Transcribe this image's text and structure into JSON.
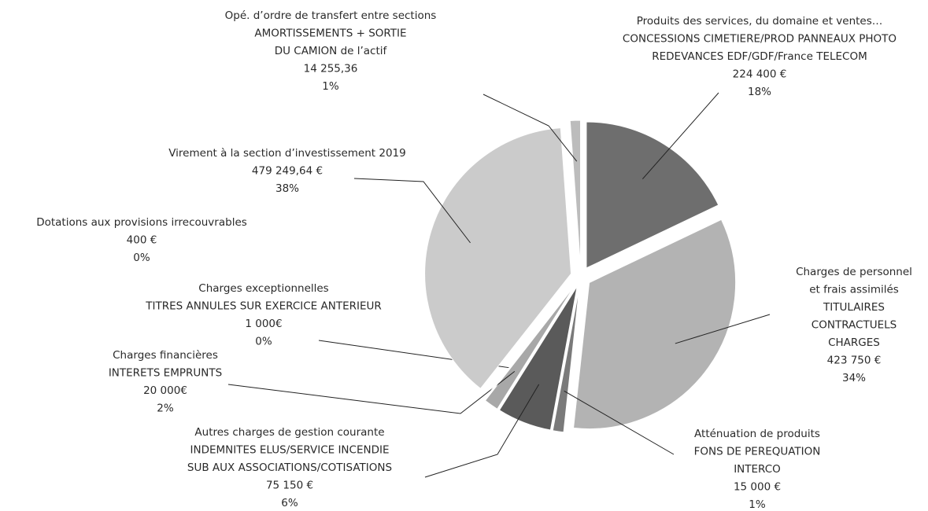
{
  "chart_data": {
    "type": "pie",
    "labels": [
      [
        "Produits des services, du domaine et ventes…",
        "CONCESSIONS CIMETIERE/PROD PANNEAUX PHOTO",
        "REDEVANCES EDF/GDF/France TELECOM"
      ],
      [
        "Charges de personnel",
        "et frais assimilés",
        "TITULAIRES",
        "CONTRACTUELS",
        "CHARGES"
      ],
      [
        "Atténuation de produits",
        "FONS DE PEREQUATION",
        "INTERCO"
      ],
      [
        "Autres charges de gestion courante",
        "INDEMNITES ELUS/SERVICE INCENDIE",
        "SUB AUX ASSOCIATIONS/COTISATIONS"
      ],
      [
        "Charges financières",
        "INTERETS EMPRUNTS"
      ],
      [
        "Charges exceptionnelles",
        "TITRES ANNULES SUR EXERCICE ANTERIEUR"
      ],
      [
        "Dotations aux provisions irrecouvrables"
      ],
      [
        "Virement à la section d’investissement 2019"
      ],
      [
        "Opé. d’ordre de transfert entre sections",
        "AMORTISSEMENTS + SORTIE",
        "DU CAMION de l’actif"
      ]
    ],
    "values": [
      224400,
      423750,
      15000,
      75150,
      20000,
      1000,
      400,
      479249.64,
      14255.36
    ],
    "value_labels": [
      "224 400 €",
      "423 750 €",
      "15 000 €",
      "75 150 €",
      "20 000€",
      "1 000€",
      "400 €",
      "479 249,64 €",
      "14 255,36"
    ],
    "shares": [
      18,
      34,
      1,
      6,
      2,
      0,
      0,
      38,
      1
    ],
    "share_labels": [
      "18%",
      "34%",
      "1%",
      "6%",
      "2%",
      "0%",
      "0%",
      "38%",
      "1%"
    ],
    "colors": [
      "#6e6e6e",
      "#b3b3b3",
      "#7a7a7a",
      "#5a5a5a",
      "#a8a8a8",
      "#9a9a9a",
      "#bdbdbd",
      "#cbcbcb",
      "#bcbcbc"
    ]
  }
}
